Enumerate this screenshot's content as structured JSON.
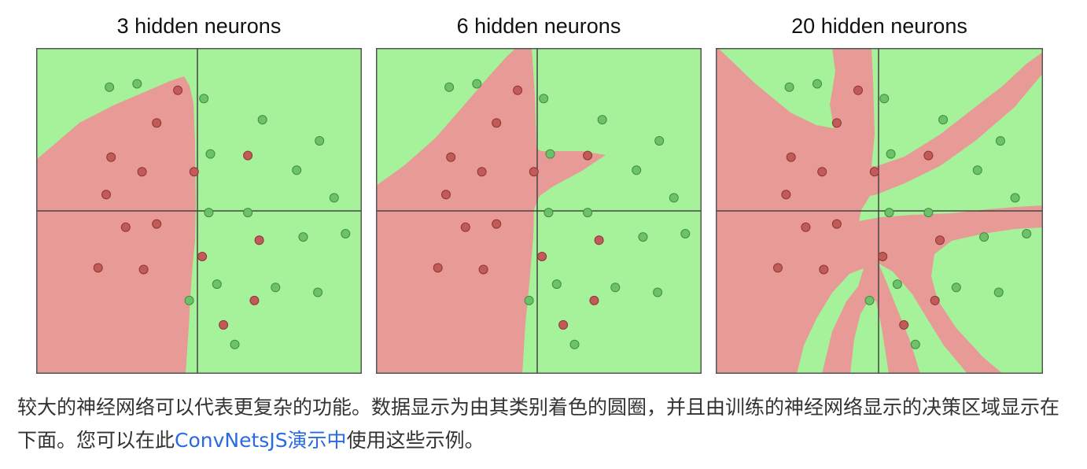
{
  "colors": {
    "green_region": "#a6f29b",
    "red_region": "#e89a96",
    "green_point": "#6cc16a",
    "red_point": "#c15a58",
    "axis": "#444444"
  },
  "panels": [
    {
      "title": "3 hidden neurons"
    },
    {
      "title": "6 hidden neurons"
    },
    {
      "title": "20 hidden neurons"
    }
  ],
  "points": [
    {
      "x": -0.55,
      "y": 0.76,
      "c": "green"
    },
    {
      "x": -0.38,
      "y": 0.78,
      "c": "green"
    },
    {
      "x": -0.13,
      "y": 0.74,
      "c": "red"
    },
    {
      "x": 0.03,
      "y": 0.69,
      "c": "green"
    },
    {
      "x": -0.26,
      "y": 0.54,
      "c": "red"
    },
    {
      "x": 0.39,
      "y": 0.56,
      "c": "green"
    },
    {
      "x": 0.74,
      "y": 0.43,
      "c": "green"
    },
    {
      "x": -0.54,
      "y": 0.33,
      "c": "red"
    },
    {
      "x": -0.35,
      "y": 0.24,
      "c": "red"
    },
    {
      "x": -0.03,
      "y": 0.24,
      "c": "red"
    },
    {
      "x": 0.07,
      "y": 0.35,
      "c": "green"
    },
    {
      "x": 0.3,
      "y": 0.34,
      "c": "red"
    },
    {
      "x": 0.6,
      "y": 0.25,
      "c": "green"
    },
    {
      "x": -0.57,
      "y": 0.1,
      "c": "red"
    },
    {
      "x": 0.83,
      "y": 0.08,
      "c": "green"
    },
    {
      "x": 0.06,
      "y": -0.01,
      "c": "green"
    },
    {
      "x": 0.3,
      "y": -0.01,
      "c": "green"
    },
    {
      "x": -0.45,
      "y": -0.1,
      "c": "red"
    },
    {
      "x": -0.26,
      "y": -0.08,
      "c": "red"
    },
    {
      "x": 0.37,
      "y": -0.18,
      "c": "red"
    },
    {
      "x": 0.64,
      "y": -0.16,
      "c": "green"
    },
    {
      "x": 0.9,
      "y": -0.14,
      "c": "green"
    },
    {
      "x": 0.02,
      "y": -0.28,
      "c": "red"
    },
    {
      "x": -0.62,
      "y": -0.35,
      "c": "red"
    },
    {
      "x": -0.34,
      "y": -0.36,
      "c": "red"
    },
    {
      "x": 0.11,
      "y": -0.45,
      "c": "green"
    },
    {
      "x": 0.47,
      "y": -0.47,
      "c": "green"
    },
    {
      "x": 0.73,
      "y": -0.5,
      "c": "green"
    },
    {
      "x": -0.06,
      "y": -0.55,
      "c": "green"
    },
    {
      "x": 0.34,
      "y": -0.55,
      "c": "red"
    },
    {
      "x": 0.15,
      "y": -0.7,
      "c": "red"
    },
    {
      "x": 0.22,
      "y": -0.82,
      "c": "green"
    }
  ],
  "caption": {
    "before_link": "较大的神经网络可以代表更复杂的功能。数据显示为由其类别着色的圆圈，并且由训练的神经网络显示的决策区域显示在下面。您可以在此",
    "link": "ConvNetsJS演示中",
    "after_link": "使用这些示例。"
  }
}
